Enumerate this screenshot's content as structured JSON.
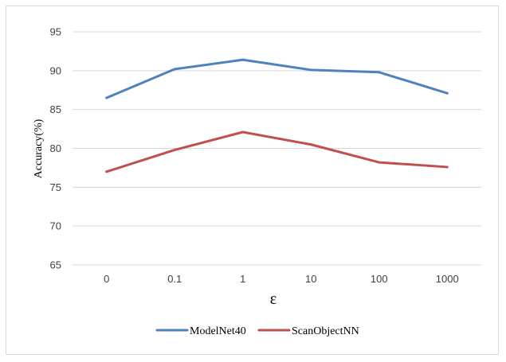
{
  "chart_data": {
    "type": "line",
    "title": "",
    "xlabel": "ε",
    "ylabel": "Accuracy(%)",
    "categories": [
      "0",
      "0.1",
      "1",
      "10",
      "100",
      "1000"
    ],
    "ylim": [
      65,
      95
    ],
    "yticks": [
      65,
      70,
      75,
      80,
      85,
      90,
      95
    ],
    "grid": true,
    "legend_position": "bottom",
    "series": [
      {
        "name": "ModelNet40",
        "color": "#4f81bd",
        "values": [
          86.5,
          90.2,
          91.4,
          90.1,
          89.8,
          87.1
        ]
      },
      {
        "name": "ScanObjectNN",
        "color": "#c0504d",
        "values": [
          77.0,
          79.8,
          82.1,
          80.5,
          78.2,
          77.6
        ]
      }
    ]
  }
}
